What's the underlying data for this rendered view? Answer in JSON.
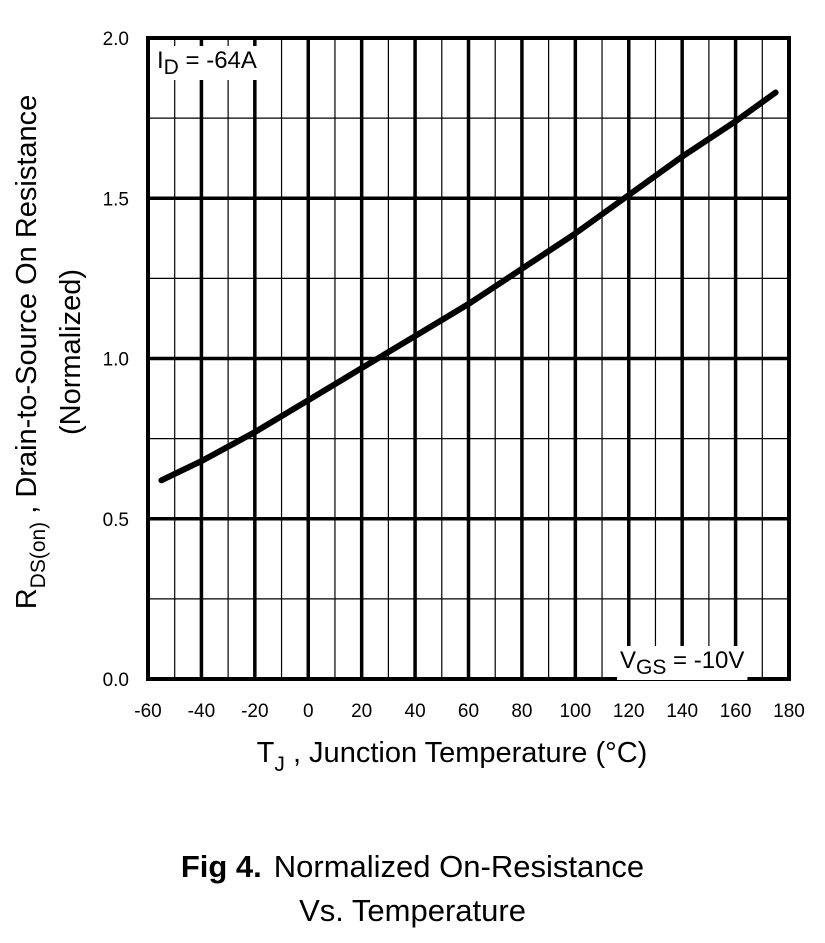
{
  "chart_data": {
    "type": "line",
    "x": [
      -55,
      -40,
      -20,
      0,
      20,
      40,
      60,
      80,
      100,
      120,
      140,
      160,
      175
    ],
    "series": [
      {
        "values": [
          0.62,
          0.68,
          0.77,
          0.87,
          0.97,
          1.07,
          1.17,
          1.28,
          1.39,
          1.51,
          1.63,
          1.74,
          1.83
        ]
      }
    ],
    "xlim": [
      -60,
      180
    ],
    "ylim": [
      0.0,
      2.0
    ],
    "x_ticks": [
      "-60",
      "-40",
      "-20",
      "0",
      "20",
      "40",
      "60",
      "80",
      "100",
      "120",
      "140",
      "160",
      "180"
    ],
    "y_ticks": [
      "0.0",
      "0.5",
      "1.0",
      "1.5",
      "2.0"
    ],
    "xlabel": {
      "main": "T",
      "sub": "J",
      "rest": " , Junction Temperature (°C)"
    },
    "ylabel": {
      "main": "R",
      "sub": "DS(on)",
      "rest": " ,   Drain-to-Source On Resistance",
      "line2": "(Normalized)"
    },
    "annotations": {
      "id": {
        "prefix": "I",
        "sub": "D",
        "value": " = -64A"
      },
      "vgs": {
        "prefix": "V",
        "sub": "GS",
        "value": " = -10V"
      }
    },
    "grid": true
  },
  "caption": {
    "fig_label": "Fig 4.",
    "line1": "Normalized On-Resistance",
    "line2": "Vs. Temperature"
  }
}
